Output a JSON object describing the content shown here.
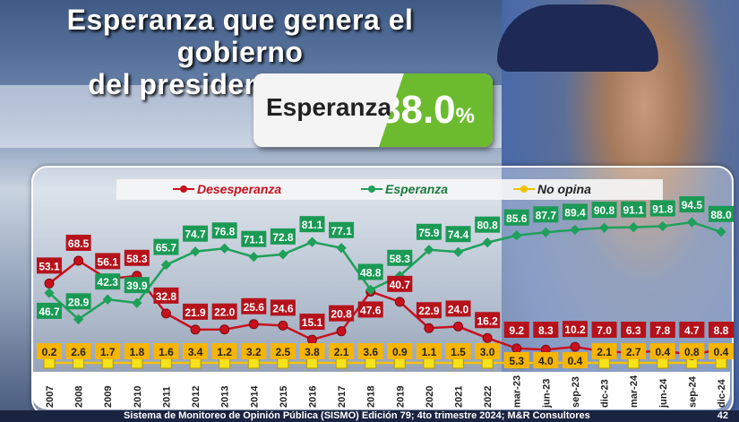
{
  "header": {
    "title_line1": "Esperanza que genera el gobierno",
    "title_line2": "del presidente Ortega"
  },
  "kpi": {
    "label": "Esperanza",
    "value": "88.0",
    "unit": "%"
  },
  "footer": {
    "source": "Sistema de Monitoreo de Opinión Pública (SISMO) Edición 79; 4to trimestre 2024; M&R Consultores",
    "page": "42"
  },
  "chart_data": {
    "type": "line",
    "categories": [
      "2007",
      "2008",
      "2009",
      "2010",
      "2011",
      "2012",
      "2013",
      "2014",
      "2015",
      "2016",
      "2017",
      "2018",
      "2019",
      "2020",
      "2021",
      "2022",
      "mar-23",
      "jun-23",
      "sep-23",
      "dic-23",
      "mar-24",
      "jun-24",
      "sep-24",
      "dic-24"
    ],
    "series": [
      {
        "name": "Desesperanza",
        "color": "#c8101e",
        "label_bg": "#b5121b",
        "values": [
          53.1,
          68.5,
          56.1,
          58.3,
          32.8,
          21.9,
          22.0,
          25.6,
          24.6,
          15.1,
          20.8,
          47.6,
          40.7,
          22.9,
          24.0,
          16.2,
          9.2,
          8.3,
          10.2,
          7.0,
          6.3,
          7.8,
          4.7,
          8.8
        ]
      },
      {
        "name": "Esperanza",
        "color": "#1fa05a",
        "label_bg": "#1a9a55",
        "values": [
          46.7,
          28.9,
          42.3,
          39.9,
          65.7,
          74.7,
          76.8,
          71.1,
          72.8,
          81.1,
          77.1,
          48.8,
          58.3,
          75.9,
          74.4,
          80.8,
          85.6,
          87.7,
          89.4,
          90.8,
          91.1,
          91.8,
          94.5,
          88.0
        ]
      },
      {
        "name": "No opina",
        "color": "#f2c200",
        "label_bg": "#f7b500",
        "values": [
          0.2,
          2.6,
          1.7,
          1.8,
          1.6,
          3.4,
          1.2,
          3.2,
          2.5,
          3.8,
          2.1,
          3.6,
          0.9,
          1.1,
          1.5,
          3.0,
          5.3,
          4.0,
          0.4,
          2.1,
          2.7,
          0.4,
          0.8,
          0.4
        ]
      }
    ],
    "ylim": [
      0,
      100
    ],
    "grid": false,
    "legend": "top"
  }
}
